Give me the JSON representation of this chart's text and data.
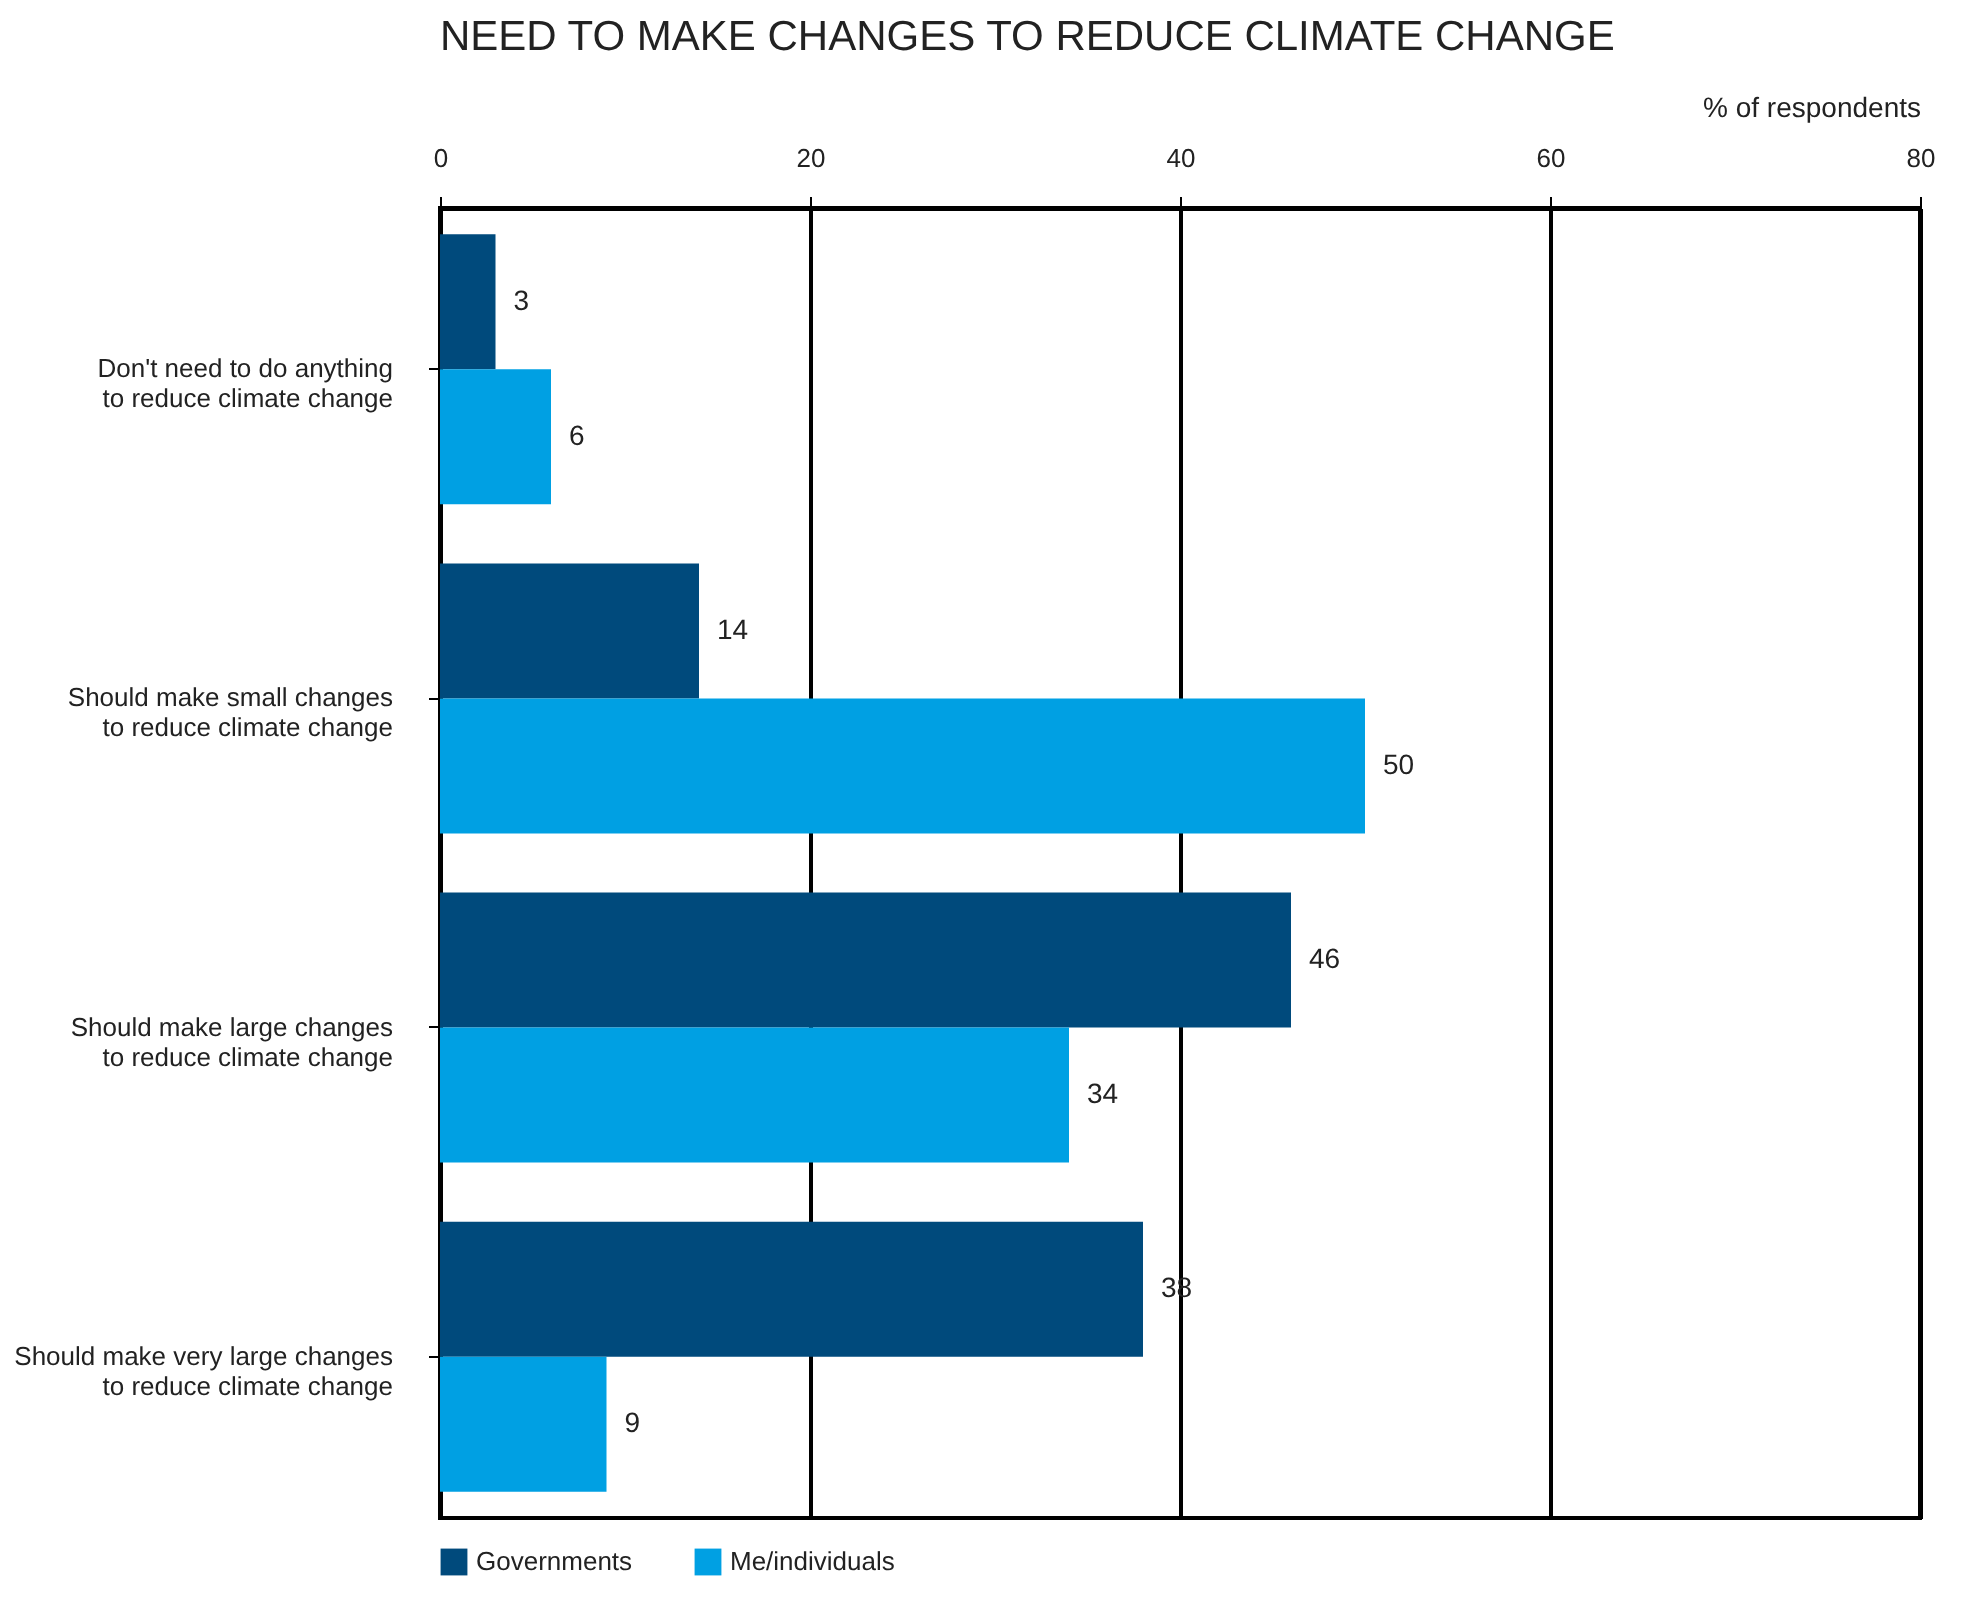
{
  "chart_data": {
    "type": "bar",
    "orientation": "horizontal",
    "title": "NEED TO MAKE CHANGES TO REDUCE CLIMATE CHANGE",
    "xlabel": "% of respondents",
    "categories": [
      "Don't need to do anything to reduce climate change",
      "Should make small changes to reduce climate change",
      "Should make large changes to reduce climate change",
      "Should make very large changes to reduce climate change"
    ],
    "series": [
      {
        "name": "Governments",
        "color": "#004a7c",
        "values": [
          3,
          14,
          46,
          38
        ]
      },
      {
        "name": "Me/individuals",
        "color": "#00a0e3",
        "values": [
          6,
          50,
          34,
          9
        ]
      }
    ],
    "xlim": [
      0,
      80
    ],
    "xticks": [
      0,
      20,
      40,
      60,
      80
    ],
    "grid": "x",
    "data_labels": true,
    "legend": "bottom"
  }
}
